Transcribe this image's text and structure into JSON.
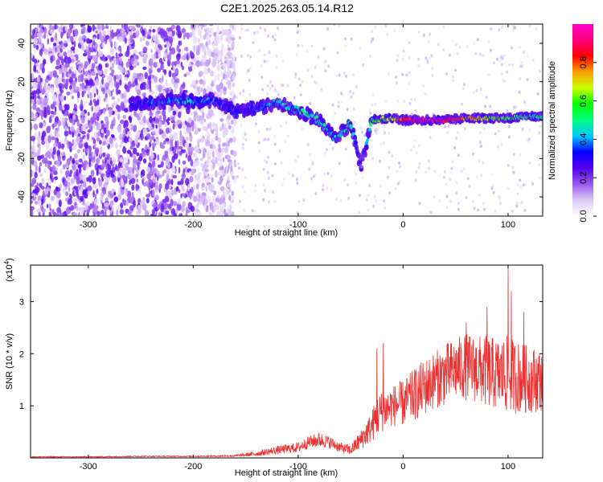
{
  "title": "C2E1.2025.263.05.14.R12",
  "chart_data": [
    {
      "type": "heatmap",
      "xlabel": "Height of straight line (km)",
      "ylabel": "Frequency (Hz)",
      "xlim": [
        -355,
        133
      ],
      "ylim": [
        -50,
        50
      ],
      "xticks": [
        -300,
        -200,
        -100,
        0,
        100
      ],
      "yticks": [
        -40,
        -20,
        0,
        20,
        40
      ],
      "colorbar": {
        "label": "Normalized spectral amplitude",
        "range": [
          0,
          1
        ],
        "ticks": [
          "0.0",
          "0.2",
          "0.4",
          "0.6",
          "0.8"
        ],
        "colors": [
          "#ffffff",
          "#dcc8f5",
          "#9b59ee",
          "#5500ee",
          "#0000ff",
          "#00c8ff",
          "#00ff80",
          "#00ff00",
          "#c8ff00",
          "#ffa000",
          "#ff0000",
          "#ff0080",
          "#ff00c8"
        ]
      },
      "noise_region": {
        "x": [
          -355,
          -160
        ],
        "y": [
          -50,
          50
        ],
        "amplitude": [
          0.05,
          0.25
        ]
      },
      "signal_track": [
        {
          "x": -260,
          "y": 8,
          "amp": 0.3
        },
        {
          "x": -240,
          "y": 9,
          "amp": 0.35
        },
        {
          "x": -220,
          "y": 10,
          "amp": 0.38
        },
        {
          "x": -200,
          "y": 10,
          "amp": 0.38
        },
        {
          "x": -180,
          "y": 10,
          "amp": 0.35
        },
        {
          "x": -160,
          "y": 5,
          "amp": 0.3
        },
        {
          "x": -140,
          "y": 6,
          "amp": 0.32
        },
        {
          "x": -120,
          "y": 9,
          "amp": 0.4
        },
        {
          "x": -100,
          "y": 5,
          "amp": 0.45
        },
        {
          "x": -80,
          "y": 0,
          "amp": 0.45
        },
        {
          "x": -65,
          "y": -10,
          "amp": 0.4
        },
        {
          "x": -50,
          "y": -2,
          "amp": 0.5
        },
        {
          "x": -40,
          "y": -25,
          "amp": 0.2
        },
        {
          "x": -30,
          "y": 0,
          "amp": 0.55
        },
        {
          "x": -10,
          "y": 1,
          "amp": 0.65
        },
        {
          "x": 0,
          "y": 0,
          "amp": 0.85
        },
        {
          "x": 20,
          "y": 0,
          "amp": 0.95
        },
        {
          "x": 40,
          "y": 0,
          "amp": 0.9
        },
        {
          "x": 60,
          "y": 1,
          "amp": 0.75
        },
        {
          "x": 80,
          "y": 1,
          "amp": 0.65
        },
        {
          "x": 100,
          "y": 1,
          "amp": 0.55
        },
        {
          "x": 120,
          "y": 2,
          "amp": 0.5
        },
        {
          "x": 133,
          "y": 2,
          "amp": 0.45
        }
      ]
    },
    {
      "type": "line",
      "xlabel": "Height of straight line (km)",
      "ylabel": "SNR (10 * v/v)",
      "yscale_label": "(x10^4)",
      "scale_base": "(x10",
      "scale_exp": "4",
      "xlim": [
        -355,
        133
      ],
      "ylim": [
        0,
        3.7
      ],
      "xticks": [
        -300,
        -200,
        -100,
        0,
        100
      ],
      "yticks": [
        1,
        2,
        3
      ],
      "color": "#ee3030",
      "series": [
        {
          "x": [
            -355,
            -300,
            -250,
            -200,
            -160,
            -140,
            -120,
            -100,
            -90,
            -80,
            -70,
            -60,
            -50,
            -40,
            -30,
            -25,
            -20,
            -10,
            0,
            10,
            20,
            30,
            40,
            50,
            60,
            70,
            80,
            90,
            100,
            110,
            120,
            133
          ],
          "y": [
            0.02,
            0.02,
            0.03,
            0.03,
            0.04,
            0.08,
            0.15,
            0.2,
            0.3,
            0.35,
            0.3,
            0.2,
            0.15,
            0.35,
            0.6,
            0.8,
            0.9,
            1.0,
            1.05,
            1.2,
            1.35,
            1.5,
            1.6,
            1.7,
            1.75,
            1.7,
            1.65,
            1.6,
            1.6,
            1.55,
            1.5,
            1.5
          ],
          "noise": [
            0.01,
            0.01,
            0.01,
            0.01,
            0.02,
            0.05,
            0.08,
            0.1,
            0.12,
            0.15,
            0.12,
            0.1,
            0.1,
            0.2,
            0.3,
            0.4,
            0.4,
            0.4,
            0.45,
            0.5,
            0.55,
            0.55,
            0.6,
            0.6,
            0.65,
            0.65,
            0.7,
            0.7,
            0.75,
            0.7,
            0.65,
            0.6
          ],
          "spikes": [
            {
              "x": -25,
              "y": 2.1
            },
            {
              "x": -19,
              "y": 2.2
            },
            {
              "x": 60,
              "y": 2.6
            },
            {
              "x": 80,
              "y": 2.9
            },
            {
              "x": 100,
              "y": 3.7
            },
            {
              "x": 103,
              "y": 3.2
            },
            {
              "x": 115,
              "y": 2.8
            }
          ]
        }
      ]
    }
  ]
}
